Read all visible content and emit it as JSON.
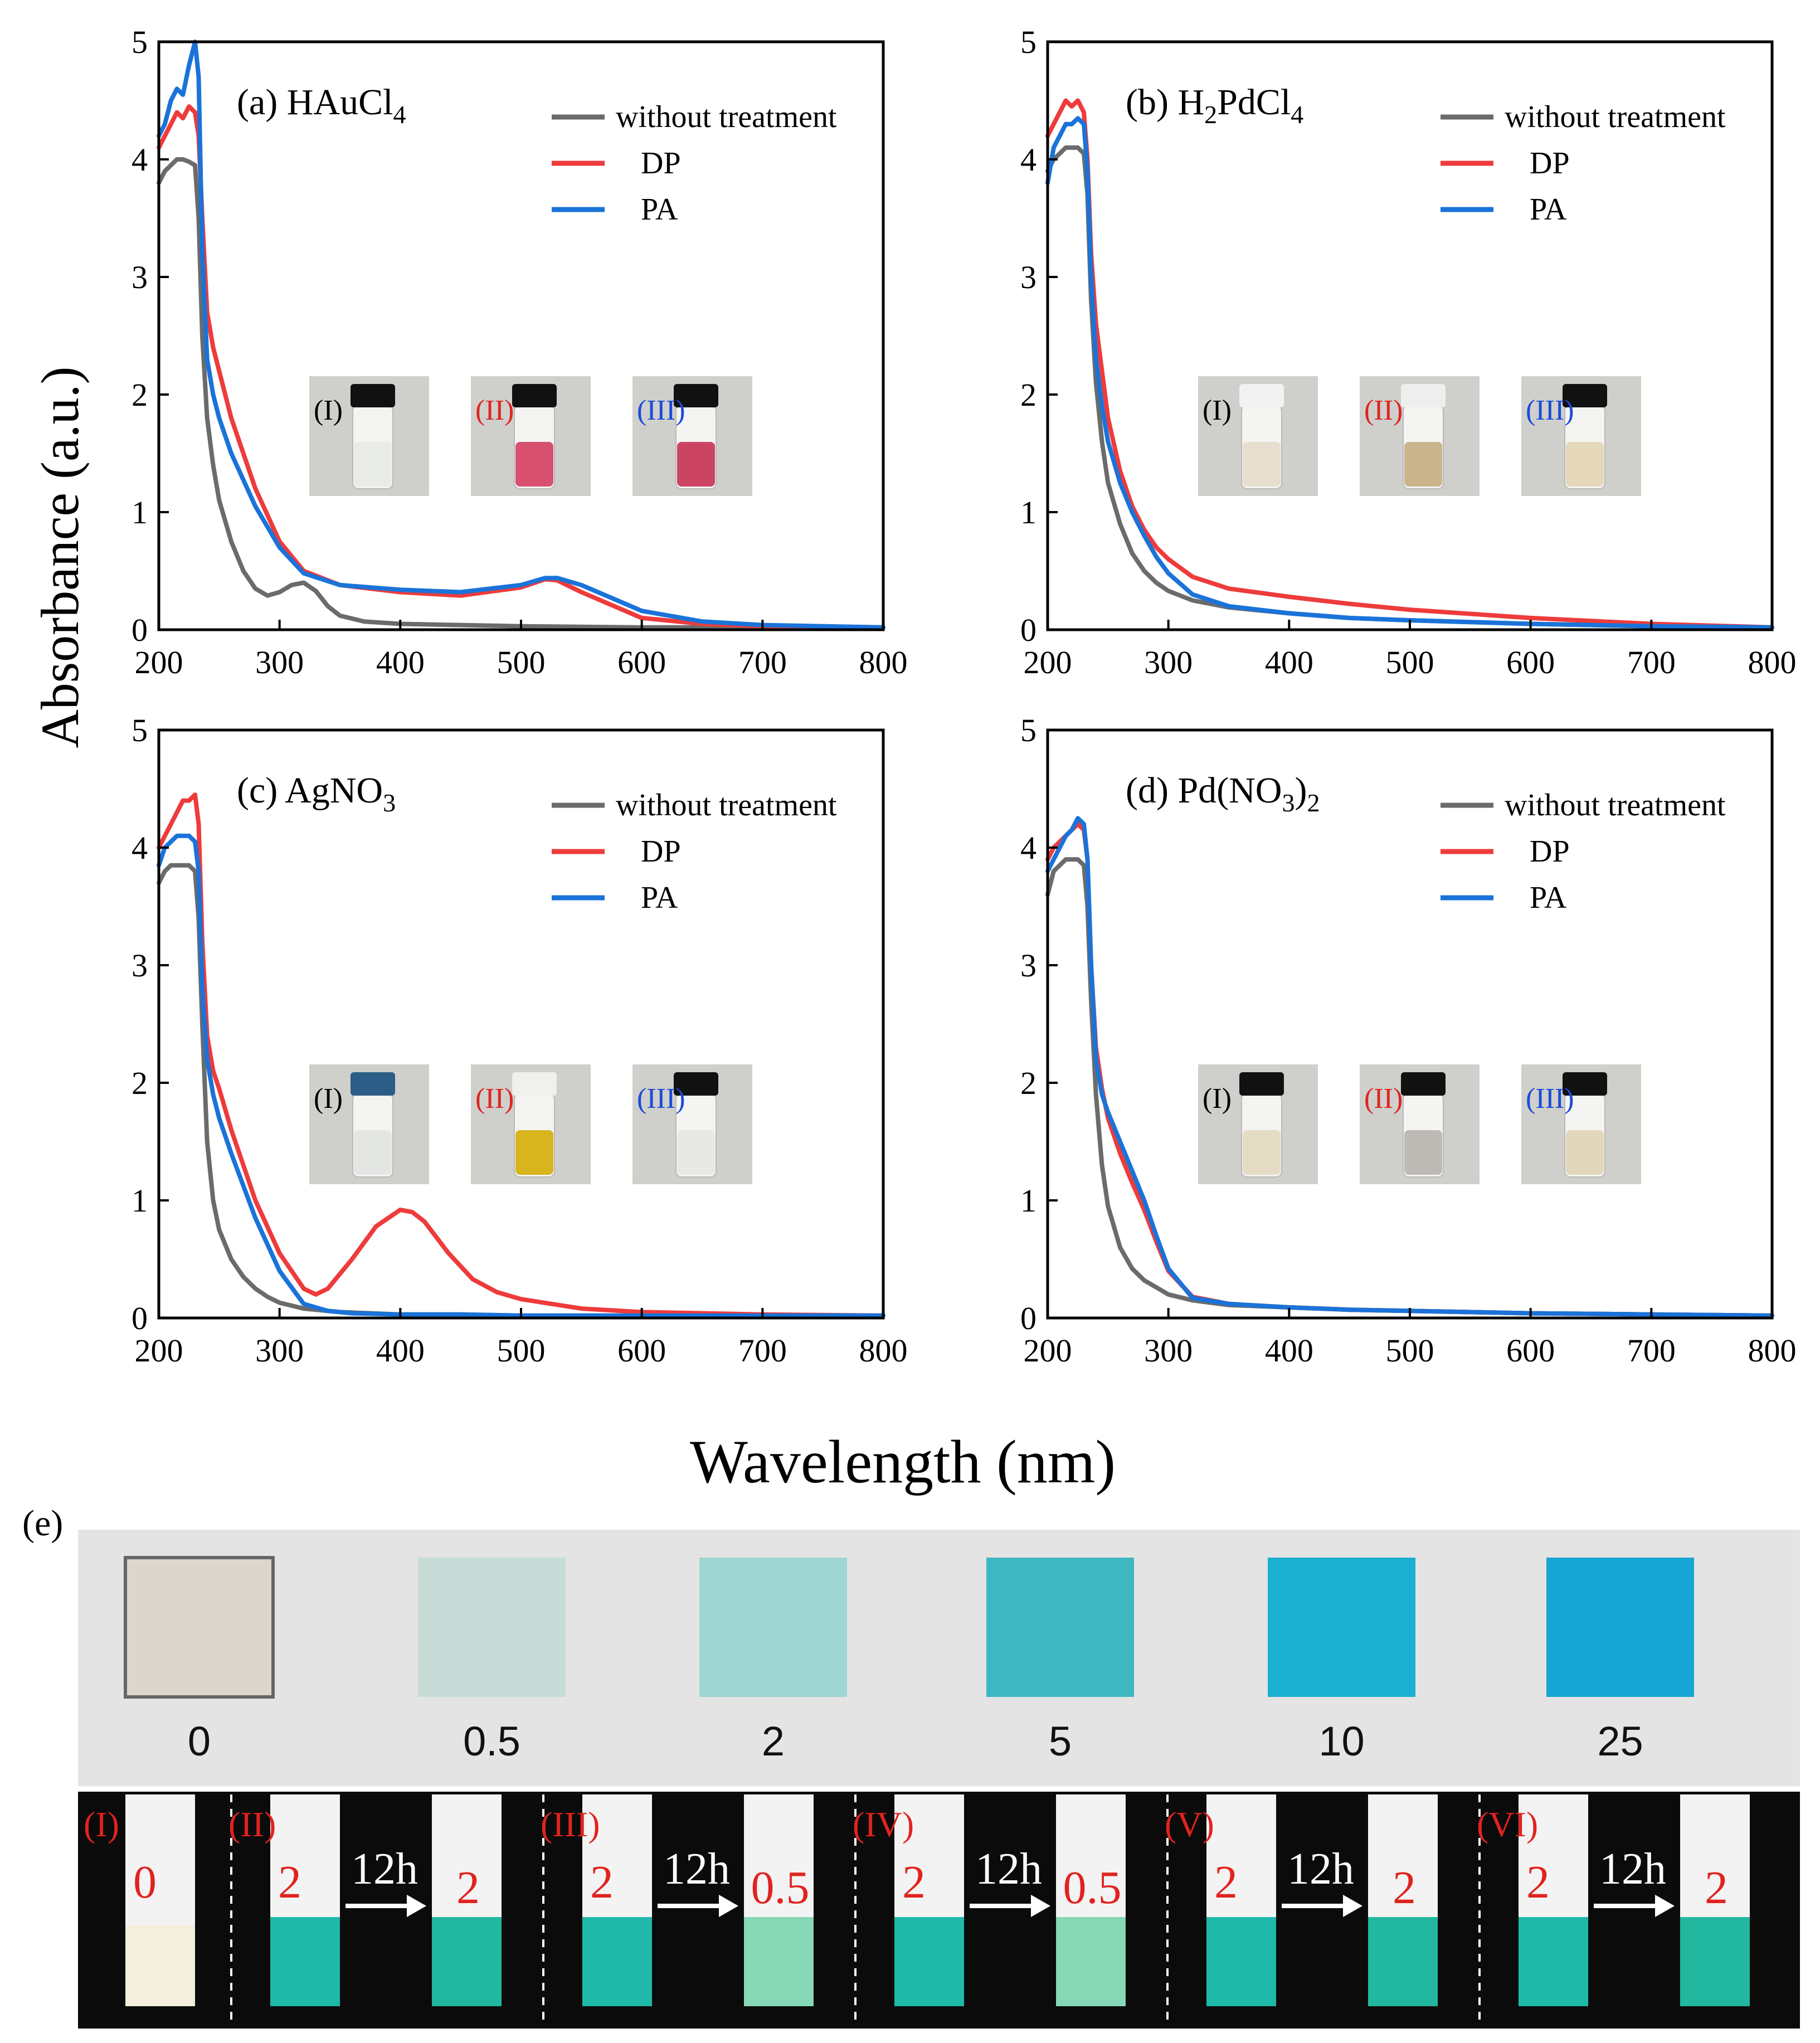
{
  "figure": {
    "y_axis_label": "Absorbance (a.u.)",
    "x_axis_label": "Wavelength (nm)",
    "panel_e_label": "(e)"
  },
  "colors": {
    "without": "#6b6b6b",
    "dp": "#ee3b3b",
    "pa": "#1a73d9",
    "strip_red": "#e0231f"
  },
  "legend_labels": [
    "without treatment",
    "DP",
    "PA"
  ],
  "chart_data": [
    {
      "type": "line",
      "title": "(a) HAuCl4",
      "title_parts": {
        "pre": "(a) HAuCl",
        "sub": "4",
        "post": ""
      },
      "xlim": [
        200,
        800
      ],
      "ylim": [
        0,
        5
      ],
      "xticks": [
        200,
        300,
        400,
        500,
        600,
        700,
        800
      ],
      "yticks": [
        0,
        1,
        2,
        3,
        4,
        5
      ],
      "series": [
        {
          "name": "without treatment",
          "color": "#6b6b6b",
          "x": [
            200,
            205,
            210,
            215,
            220,
            225,
            230,
            233,
            236,
            240,
            245,
            250,
            260,
            270,
            280,
            290,
            300,
            310,
            320,
            330,
            340,
            350,
            370,
            400,
            450,
            500,
            600,
            700,
            800
          ],
          "y": [
            3.8,
            3.9,
            3.95,
            4.0,
            4.0,
            3.98,
            3.95,
            3.5,
            2.5,
            1.8,
            1.4,
            1.1,
            0.75,
            0.5,
            0.35,
            0.29,
            0.32,
            0.38,
            0.4,
            0.33,
            0.2,
            0.12,
            0.07,
            0.05,
            0.04,
            0.03,
            0.02,
            0.02,
            0.02
          ]
        },
        {
          "name": "DP",
          "color": "#ee3b3b",
          "x": [
            200,
            205,
            210,
            215,
            220,
            225,
            230,
            233,
            236,
            240,
            245,
            250,
            260,
            280,
            300,
            320,
            350,
            400,
            450,
            500,
            520,
            530,
            550,
            600,
            650,
            700,
            800
          ],
          "y": [
            4.1,
            4.2,
            4.3,
            4.4,
            4.35,
            4.45,
            4.4,
            4.2,
            3.5,
            2.7,
            2.4,
            2.2,
            1.8,
            1.2,
            0.75,
            0.5,
            0.38,
            0.32,
            0.29,
            0.36,
            0.43,
            0.42,
            0.32,
            0.1,
            0.05,
            0.03,
            0.02
          ]
        },
        {
          "name": "PA",
          "color": "#1a73d9",
          "x": [
            200,
            205,
            210,
            215,
            220,
            225,
            230,
            233,
            236,
            240,
            245,
            250,
            260,
            280,
            300,
            320,
            350,
            400,
            450,
            500,
            520,
            530,
            550,
            600,
            650,
            700,
            800
          ],
          "y": [
            4.2,
            4.3,
            4.5,
            4.6,
            4.55,
            4.8,
            5.0,
            4.7,
            3.2,
            2.3,
            2.0,
            1.8,
            1.5,
            1.05,
            0.7,
            0.48,
            0.38,
            0.34,
            0.32,
            0.38,
            0.44,
            0.44,
            0.38,
            0.16,
            0.07,
            0.04,
            0.02
          ]
        }
      ],
      "insets": [
        "(I)",
        "(II)",
        "(III)"
      ]
    },
    {
      "type": "line",
      "title": "(b) H2PdCl4",
      "title_parts": {
        "pre": "(b) H",
        "sub": "2",
        "post": "PdCl",
        "sub2": "4"
      },
      "xlim": [
        200,
        800
      ],
      "ylim": [
        0,
        5
      ],
      "xticks": [
        200,
        300,
        400,
        500,
        600,
        700,
        800
      ],
      "yticks": [
        0,
        1,
        2,
        3,
        4,
        5
      ],
      "series": [
        {
          "name": "without treatment",
          "color": "#6b6b6b",
          "x": [
            200,
            205,
            210,
            215,
            220,
            225,
            230,
            233,
            236,
            240,
            245,
            250,
            260,
            270,
            280,
            290,
            300,
            320,
            350,
            400,
            450,
            500,
            600,
            700,
            800
          ],
          "y": [
            3.9,
            4.0,
            4.05,
            4.1,
            4.1,
            4.1,
            4.05,
            3.7,
            2.8,
            2.1,
            1.6,
            1.25,
            0.9,
            0.65,
            0.5,
            0.4,
            0.33,
            0.25,
            0.19,
            0.14,
            0.1,
            0.08,
            0.05,
            0.03,
            0.02
          ]
        },
        {
          "name": "DP",
          "color": "#ee3b3b",
          "x": [
            200,
            205,
            210,
            215,
            220,
            225,
            230,
            233,
            236,
            240,
            245,
            250,
            260,
            270,
            280,
            290,
            300,
            320,
            350,
            400,
            450,
            500,
            600,
            700,
            800
          ],
          "y": [
            4.2,
            4.3,
            4.4,
            4.5,
            4.45,
            4.5,
            4.4,
            4.0,
            3.2,
            2.6,
            2.2,
            1.8,
            1.35,
            1.05,
            0.85,
            0.7,
            0.6,
            0.45,
            0.35,
            0.28,
            0.22,
            0.17,
            0.1,
            0.05,
            0.02
          ]
        },
        {
          "name": "PA",
          "color": "#1a73d9",
          "x": [
            200,
            205,
            210,
            215,
            220,
            225,
            230,
            233,
            236,
            240,
            245,
            250,
            260,
            270,
            280,
            290,
            300,
            320,
            350,
            400,
            450,
            500,
            600,
            700,
            800
          ],
          "y": [
            3.8,
            4.1,
            4.2,
            4.3,
            4.3,
            4.35,
            4.3,
            3.9,
            3.0,
            2.3,
            1.9,
            1.6,
            1.25,
            1.0,
            0.8,
            0.62,
            0.48,
            0.3,
            0.2,
            0.14,
            0.1,
            0.08,
            0.05,
            0.03,
            0.02
          ]
        }
      ],
      "insets": [
        "(I)",
        "(II)",
        "(III)"
      ]
    },
    {
      "type": "line",
      "title": "(c) AgNO3",
      "title_parts": {
        "pre": "(c) AgNO",
        "sub": "3",
        "post": ""
      },
      "xlim": [
        200,
        800
      ],
      "ylim": [
        0,
        5
      ],
      "xticks": [
        200,
        300,
        400,
        500,
        600,
        700,
        800
      ],
      "yticks": [
        0,
        1,
        2,
        3,
        4,
        5
      ],
      "series": [
        {
          "name": "without treatment",
          "color": "#6b6b6b",
          "x": [
            200,
            205,
            210,
            215,
            220,
            225,
            230,
            233,
            236,
            240,
            245,
            250,
            260,
            270,
            280,
            290,
            300,
            320,
            350,
            400,
            450,
            500,
            600,
            700,
            800
          ],
          "y": [
            3.7,
            3.8,
            3.85,
            3.85,
            3.85,
            3.85,
            3.8,
            3.4,
            2.5,
            1.5,
            1.0,
            0.75,
            0.5,
            0.35,
            0.25,
            0.18,
            0.13,
            0.08,
            0.05,
            0.03,
            0.03,
            0.02,
            0.02,
            0.02,
            0.02
          ]
        },
        {
          "name": "DP",
          "color": "#ee3b3b",
          "x": [
            200,
            205,
            210,
            215,
            220,
            225,
            230,
            233,
            236,
            240,
            245,
            250,
            260,
            280,
            300,
            320,
            330,
            340,
            360,
            380,
            400,
            410,
            420,
            440,
            460,
            480,
            500,
            550,
            600,
            700,
            800
          ],
          "y": [
            4.0,
            4.1,
            4.2,
            4.3,
            4.4,
            4.4,
            4.45,
            4.2,
            3.2,
            2.4,
            2.1,
            1.95,
            1.6,
            1.0,
            0.55,
            0.25,
            0.2,
            0.25,
            0.5,
            0.78,
            0.92,
            0.9,
            0.82,
            0.55,
            0.33,
            0.22,
            0.16,
            0.08,
            0.05,
            0.03,
            0.02
          ]
        },
        {
          "name": "PA",
          "color": "#1a73d9",
          "x": [
            200,
            205,
            210,
            215,
            220,
            225,
            230,
            233,
            236,
            240,
            245,
            250,
            260,
            280,
            300,
            320,
            340,
            360,
            400,
            450,
            500,
            600,
            700,
            800
          ],
          "y": [
            3.85,
            4.0,
            4.05,
            4.1,
            4.1,
            4.1,
            4.05,
            3.8,
            2.8,
            2.2,
            1.9,
            1.7,
            1.4,
            0.85,
            0.4,
            0.12,
            0.06,
            0.04,
            0.03,
            0.03,
            0.02,
            0.02,
            0.02,
            0.02
          ]
        }
      ],
      "insets": [
        "(I)",
        "(II)",
        "(III)"
      ]
    },
    {
      "type": "line",
      "title": "(d) Pd(NO3)2",
      "title_parts": {
        "pre": "(d) Pd(NO",
        "sub": "3",
        "post": ")",
        "sub2": "2"
      },
      "xlim": [
        200,
        800
      ],
      "ylim": [
        0,
        5
      ],
      "xticks": [
        200,
        300,
        400,
        500,
        600,
        700,
        800
      ],
      "yticks": [
        0,
        1,
        2,
        3,
        4,
        5
      ],
      "series": [
        {
          "name": "without treatment",
          "color": "#6b6b6b",
          "x": [
            200,
            205,
            210,
            215,
            220,
            225,
            230,
            233,
            236,
            240,
            245,
            250,
            260,
            270,
            280,
            290,
            300,
            320,
            350,
            400,
            450,
            500,
            600,
            700,
            800
          ],
          "y": [
            3.6,
            3.8,
            3.85,
            3.9,
            3.9,
            3.9,
            3.85,
            3.5,
            2.7,
            1.9,
            1.3,
            0.95,
            0.6,
            0.42,
            0.32,
            0.26,
            0.2,
            0.15,
            0.11,
            0.09,
            0.07,
            0.06,
            0.04,
            0.03,
            0.02
          ]
        },
        {
          "name": "DP",
          "color": "#ee3b3b",
          "x": [
            200,
            205,
            210,
            215,
            220,
            225,
            230,
            233,
            236,
            240,
            245,
            250,
            260,
            270,
            280,
            290,
            300,
            320,
            350,
            400,
            450,
            500,
            600,
            700,
            800
          ],
          "y": [
            3.9,
            4.0,
            4.05,
            4.1,
            4.15,
            4.2,
            4.15,
            3.9,
            3.0,
            2.3,
            1.95,
            1.7,
            1.4,
            1.15,
            0.92,
            0.65,
            0.4,
            0.18,
            0.12,
            0.09,
            0.07,
            0.06,
            0.04,
            0.03,
            0.02
          ]
        },
        {
          "name": "PA",
          "color": "#1a73d9",
          "x": [
            200,
            205,
            210,
            215,
            220,
            225,
            230,
            233,
            236,
            240,
            245,
            250,
            260,
            270,
            280,
            290,
            300,
            320,
            350,
            400,
            450,
            500,
            600,
            700,
            800
          ],
          "y": [
            3.8,
            3.9,
            4.0,
            4.1,
            4.15,
            4.25,
            4.2,
            3.9,
            3.0,
            2.2,
            1.9,
            1.75,
            1.5,
            1.25,
            1.0,
            0.7,
            0.42,
            0.17,
            0.12,
            0.09,
            0.07,
            0.06,
            0.04,
            0.03,
            0.02
          ]
        }
      ],
      "insets": [
        "(I)",
        "(II)",
        "(III)"
      ]
    }
  ],
  "panel_e": {
    "scale_labels": [
      "0",
      "0.5",
      "2",
      "5",
      "10",
      "25"
    ],
    "scale_colors": [
      "#dcd6cc",
      "#c7dcd7",
      "#9fd5d2",
      "#3fb7c3",
      "#1ab0cf",
      "#17a5d3"
    ],
    "strips": [
      {
        "roman": "(I)",
        "before": "0",
        "time": "",
        "after": ""
      },
      {
        "roman": "(II)",
        "before": "2",
        "time": "12h",
        "after": "2"
      },
      {
        "roman": "(III)",
        "before": "2",
        "time": "12h",
        "after": "0.5"
      },
      {
        "roman": "(IV)",
        "before": "2",
        "time": "12h",
        "after": "0.5"
      },
      {
        "roman": "(V)",
        "before": "2",
        "time": "12h",
        "after": "2"
      },
      {
        "roman": "(VI)",
        "before": "2",
        "time": "12h",
        "after": "2"
      }
    ]
  }
}
